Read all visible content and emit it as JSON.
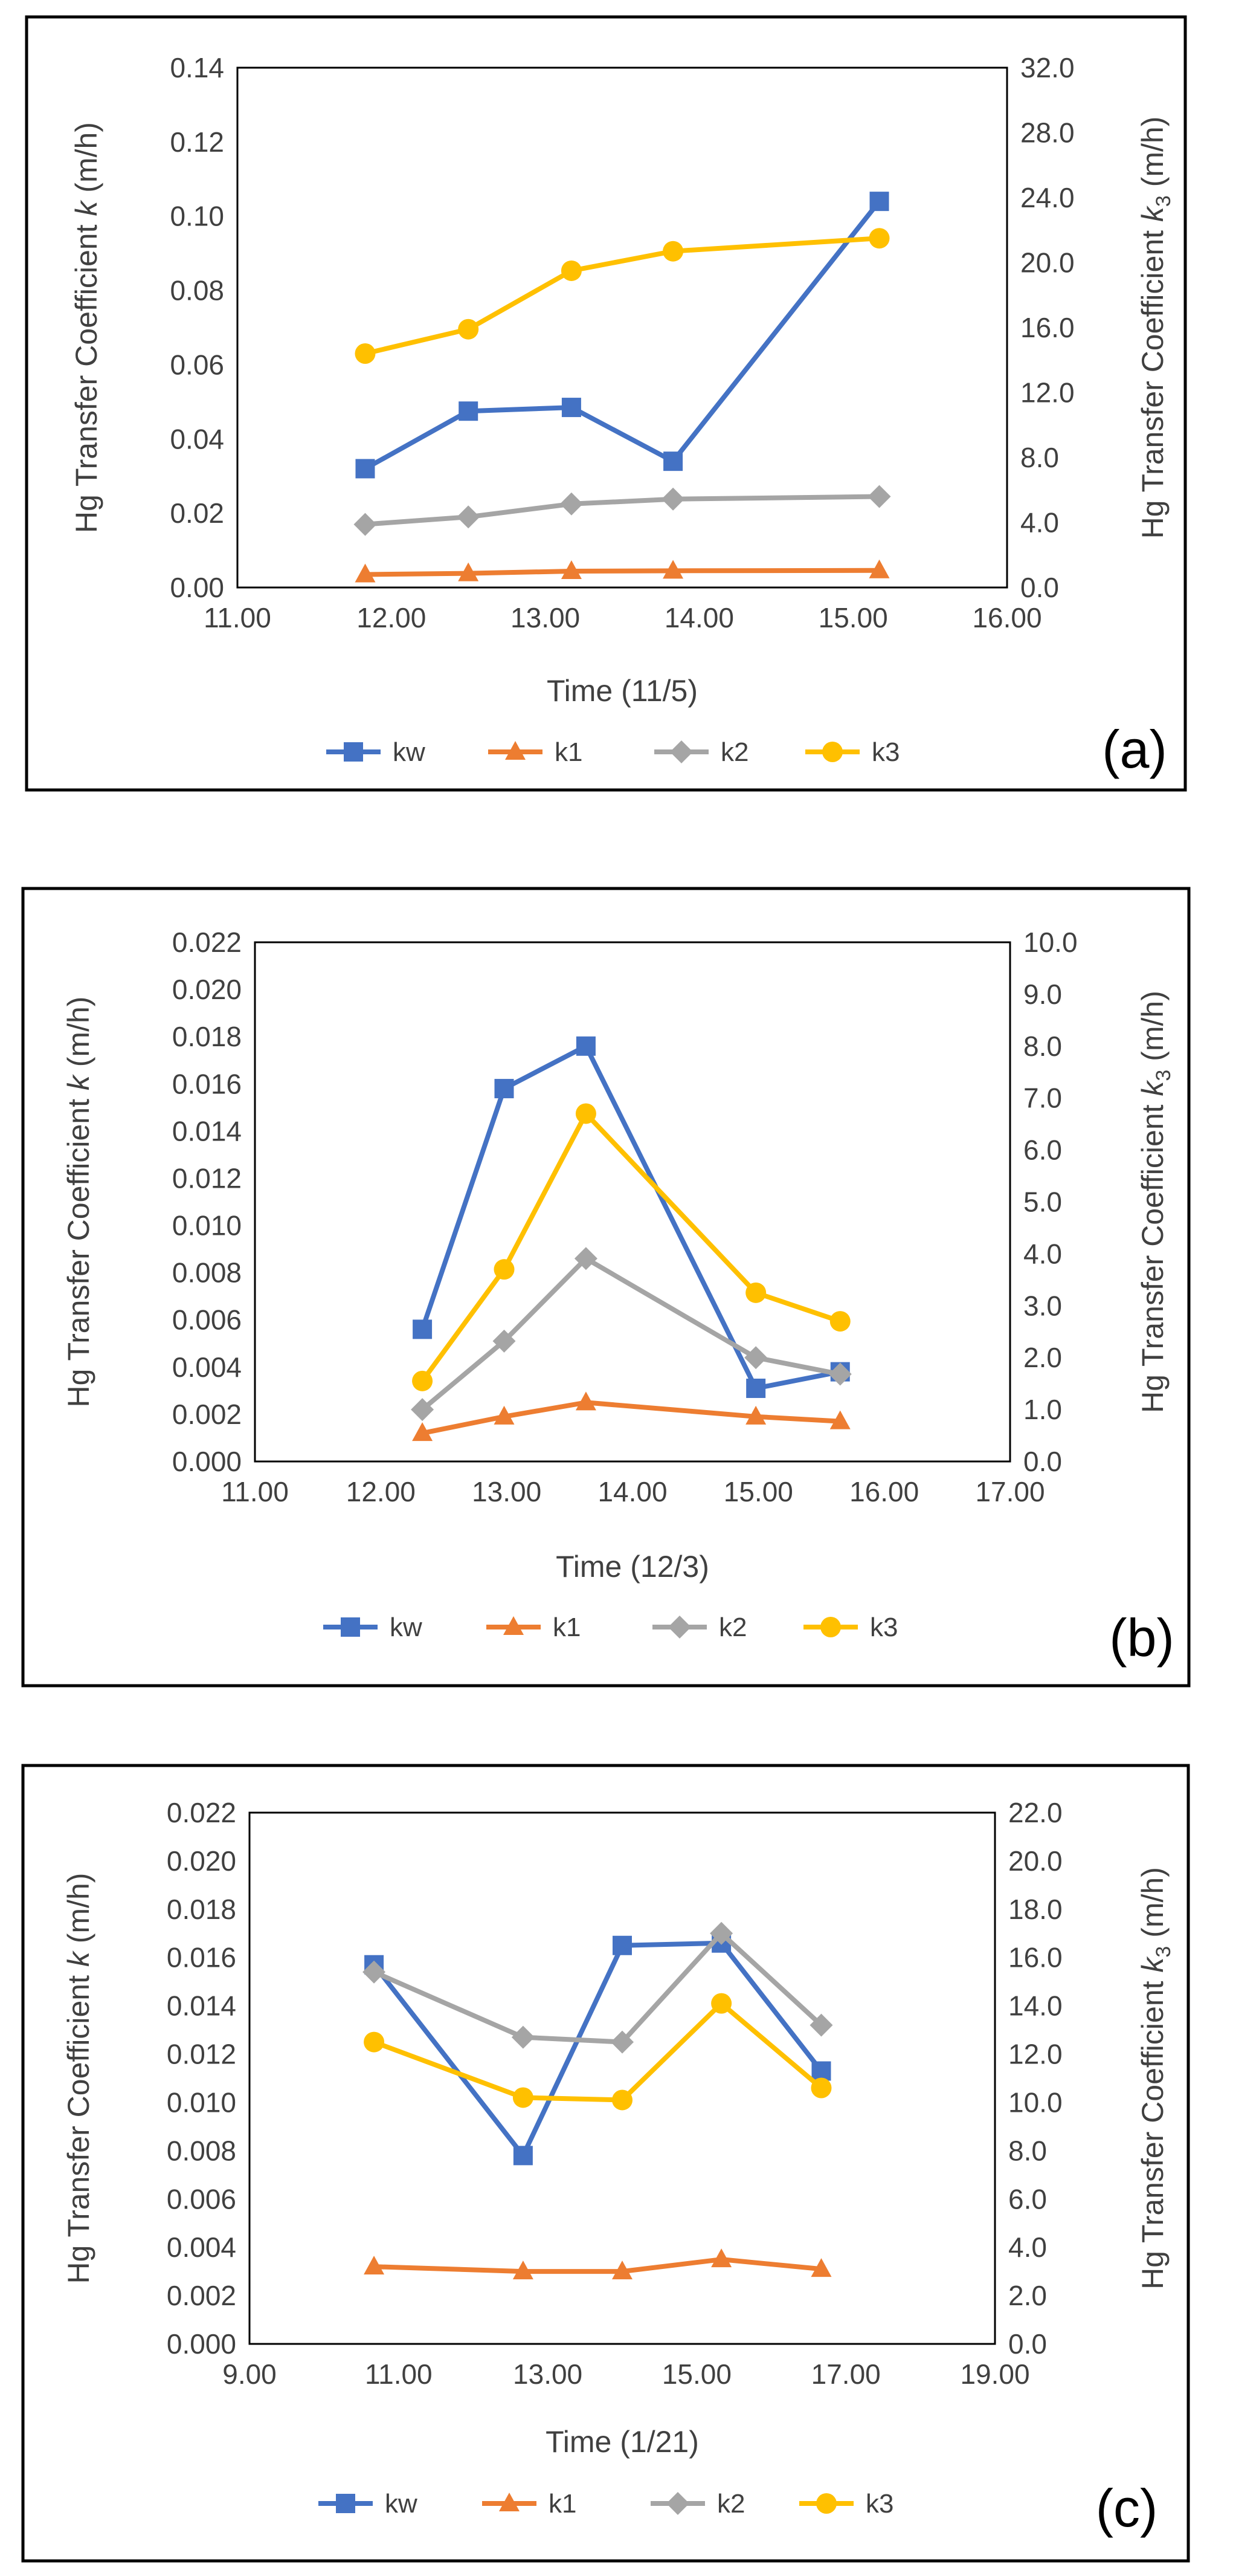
{
  "chart_data": [
    {
      "type": "line",
      "panel_label": "(a)",
      "xlabel": "Time (11/5)",
      "ylabel_left": "Hg Transfer Coefficient",
      "ylabel_left_symbol": "k",
      "ylabel_left_unit": "(m/h)",
      "ylabel_right": "Hg Transfer Coefficient",
      "ylabel_right_symbol": "k",
      "ylabel_right_subscript": "3",
      "ylabel_right_unit": "(m/h)",
      "xlim": [
        11.0,
        16.0
      ],
      "xticks": [
        "11.00",
        "12.00",
        "13.00",
        "14.00",
        "15.00",
        "16.00"
      ],
      "ylim_left": [
        0,
        0.14
      ],
      "yticks_left": [
        "0.00",
        "0.02",
        "0.04",
        "0.06",
        "0.08",
        "0.10",
        "0.12",
        "0.14"
      ],
      "ylim_right": [
        0,
        32
      ],
      "yticks_right": [
        "0.0",
        "4.0",
        "8.0",
        "12.0",
        "16.0",
        "20.0",
        "24.0",
        "28.0",
        "32.0"
      ],
      "legend": [
        "kw",
        "k1",
        "k2",
        "k3"
      ],
      "series": [
        {
          "name": "kw",
          "axis": "left",
          "color": "#4472C4",
          "marker": "square",
          "x": [
            11.83,
            12.5,
            13.17,
            13.83,
            15.17
          ],
          "values": [
            0.032,
            0.0475,
            0.0485,
            0.034,
            0.104
          ]
        },
        {
          "name": "k1",
          "axis": "left",
          "color": "#ED7D31",
          "marker": "triangle",
          "x": [
            11.83,
            12.5,
            13.17,
            13.83,
            15.17
          ],
          "values": [
            0.0035,
            0.0038,
            0.0044,
            0.0045,
            0.0046
          ]
        },
        {
          "name": "k2",
          "axis": "left",
          "color": "#A5A5A5",
          "marker": "diamond",
          "x": [
            11.83,
            12.5,
            13.17,
            13.83,
            15.17
          ],
          "values": [
            0.017,
            0.019,
            0.0225,
            0.0238,
            0.0245
          ]
        },
        {
          "name": "k3",
          "axis": "right",
          "color": "#FFC000",
          "marker": "circle",
          "x": [
            11.83,
            12.5,
            13.17,
            13.83,
            15.17
          ],
          "values": [
            14.4,
            15.9,
            19.5,
            20.7,
            21.5
          ]
        }
      ]
    },
    {
      "type": "line",
      "panel_label": "(b)",
      "xlabel": "Time (12/3)",
      "ylabel_left": "Hg Transfer Coefficient",
      "ylabel_left_symbol": "k",
      "ylabel_left_unit": "(m/h)",
      "ylabel_right": "Hg Transfer Coefficient",
      "ylabel_right_symbol": "k",
      "ylabel_right_subscript": "3",
      "ylabel_right_unit": "(m/h)",
      "xlim": [
        11.0,
        17.0
      ],
      "xticks": [
        "11.00",
        "12.00",
        "13.00",
        "14.00",
        "15.00",
        "16.00",
        "17.00"
      ],
      "ylim_left": [
        0,
        0.022
      ],
      "yticks_left": [
        "0.000",
        "0.002",
        "0.004",
        "0.006",
        "0.008",
        "0.010",
        "0.012",
        "0.014",
        "0.016",
        "0.018",
        "0.020",
        "0.022"
      ],
      "ylim_right": [
        0,
        10
      ],
      "yticks_right": [
        "0.0",
        "1.0",
        "2.0",
        "3.0",
        "4.0",
        "5.0",
        "6.0",
        "7.0",
        "8.0",
        "9.0",
        "10.0"
      ],
      "legend": [
        "kw",
        "k1",
        "k2",
        "k3"
      ],
      "series": [
        {
          "name": "kw",
          "axis": "left",
          "color": "#4472C4",
          "marker": "square",
          "x": [
            12.33,
            12.98,
            13.63,
            14.98,
            15.65
          ],
          "values": [
            0.0056,
            0.0158,
            0.0176,
            0.0031,
            0.0038
          ]
        },
        {
          "name": "k1",
          "axis": "left",
          "color": "#ED7D31",
          "marker": "triangle",
          "x": [
            12.33,
            12.98,
            13.63,
            14.98,
            15.65
          ],
          "values": [
            0.0012,
            0.0019,
            0.0025,
            0.0019,
            0.0017
          ]
        },
        {
          "name": "k2",
          "axis": "left",
          "color": "#A5A5A5",
          "marker": "diamond",
          "x": [
            12.33,
            12.98,
            13.63,
            14.98,
            15.65
          ],
          "values": [
            0.0022,
            0.0051,
            0.0086,
            0.0044,
            0.0037
          ]
        },
        {
          "name": "k3",
          "axis": "right",
          "color": "#FFC000",
          "marker": "circle",
          "x": [
            12.33,
            12.98,
            13.63,
            14.98,
            15.65
          ],
          "values": [
            1.55,
            3.7,
            6.7,
            3.25,
            2.7
          ]
        }
      ]
    },
    {
      "type": "line",
      "panel_label": "(c)",
      "xlabel": "Time (1/21)",
      "ylabel_left": "Hg Transfer Coefficient",
      "ylabel_left_symbol": "k",
      "ylabel_left_unit": "(m/h)",
      "ylabel_right": "Hg Transfer Coefficient",
      "ylabel_right_symbol": "k",
      "ylabel_right_subscript": "3",
      "ylabel_right_unit": "(m/h)",
      "xlim": [
        9.0,
        19.0
      ],
      "xticks": [
        "9.00",
        "11.00",
        "13.00",
        "15.00",
        "17.00",
        "19.00"
      ],
      "ylim_left": [
        0,
        0.022
      ],
      "yticks_left": [
        "0.000",
        "0.002",
        "0.004",
        "0.006",
        "0.008",
        "0.010",
        "0.012",
        "0.014",
        "0.016",
        "0.018",
        "0.020",
        "0.022"
      ],
      "ylim_right": [
        0,
        22
      ],
      "yticks_right": [
        "0.0",
        "2.0",
        "4.0",
        "6.0",
        "8.0",
        "10.0",
        "12.0",
        "14.0",
        "16.0",
        "18.0",
        "20.0",
        "22.0"
      ],
      "legend": [
        "kw",
        "k1",
        "k2",
        "k3"
      ],
      "series": [
        {
          "name": "kw",
          "axis": "left",
          "color": "#4472C4",
          "marker": "square",
          "x": [
            10.67,
            12.67,
            14.0,
            15.33,
            16.67
          ],
          "values": [
            0.0157,
            0.0078,
            0.0165,
            0.0166,
            0.0113
          ]
        },
        {
          "name": "k1",
          "axis": "left",
          "color": "#ED7D31",
          "marker": "triangle",
          "x": [
            10.67,
            12.67,
            14.0,
            15.33,
            16.67
          ],
          "values": [
            0.0032,
            0.003,
            0.003,
            0.0035,
            0.0031
          ]
        },
        {
          "name": "k2",
          "axis": "left",
          "color": "#A5A5A5",
          "marker": "diamond",
          "x": [
            10.67,
            12.67,
            14.0,
            15.33,
            16.67
          ],
          "values": [
            0.0154,
            0.0127,
            0.0125,
            0.017,
            0.0132
          ]
        },
        {
          "name": "k3",
          "axis": "right",
          "color": "#FFC000",
          "marker": "circle",
          "x": [
            10.67,
            12.67,
            14.0,
            15.33,
            16.67
          ],
          "values": [
            12.5,
            10.2,
            10.1,
            14.1,
            10.6
          ]
        }
      ]
    }
  ]
}
